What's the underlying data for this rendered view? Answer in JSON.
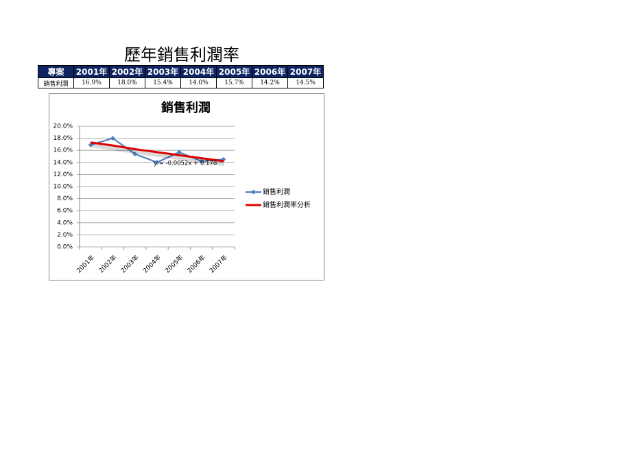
{
  "header": {
    "title": "歷年銷售利潤率"
  },
  "table": {
    "columns": [
      "專案",
      "2001年",
      "2002年",
      "2003年",
      "2004年",
      "2005年",
      "2006年",
      "2007年"
    ],
    "rows": [
      [
        "銷售利潤",
        "16.9%",
        "18.0%",
        "15.4%",
        "14.0%",
        "15.7%",
        "14.2%",
        "14.5%"
      ]
    ]
  },
  "chart_data": {
    "type": "line",
    "title": "銷售利潤",
    "categories": [
      "2001年",
      "2002年",
      "2003年",
      "2004年",
      "2005年",
      "2006年",
      "2007年"
    ],
    "series": [
      {
        "name": "銷售利潤",
        "color": "#4f81bd",
        "values": [
          16.9,
          18.0,
          15.4,
          14.0,
          15.7,
          14.2,
          14.5
        ]
      },
      {
        "name": "銷售利潤率分析",
        "color": "#e00000",
        "values": [
          17.3,
          16.8,
          16.2,
          15.7,
          15.2,
          14.7,
          14.2
        ]
      }
    ],
    "annotation": "y = -0.0052x + 0.178",
    "ylim": [
      0,
      20
    ],
    "yticks": [
      {
        "value": 0,
        "label": "0.0%"
      },
      {
        "value": 2,
        "label": "2.0%"
      },
      {
        "value": 4,
        "label": "4.0%"
      },
      {
        "value": 6,
        "label": "6.0%"
      },
      {
        "value": 8,
        "label": "8.0%"
      },
      {
        "value": 10,
        "label": "10.0%"
      },
      {
        "value": 12,
        "label": "12.0%"
      },
      {
        "value": 14,
        "label": "14.0%"
      },
      {
        "value": 16,
        "label": "16.0%"
      },
      {
        "value": 18,
        "label": "18.0%"
      },
      {
        "value": 20,
        "label": "20.0%"
      }
    ],
    "grid": true,
    "legend": "right"
  }
}
